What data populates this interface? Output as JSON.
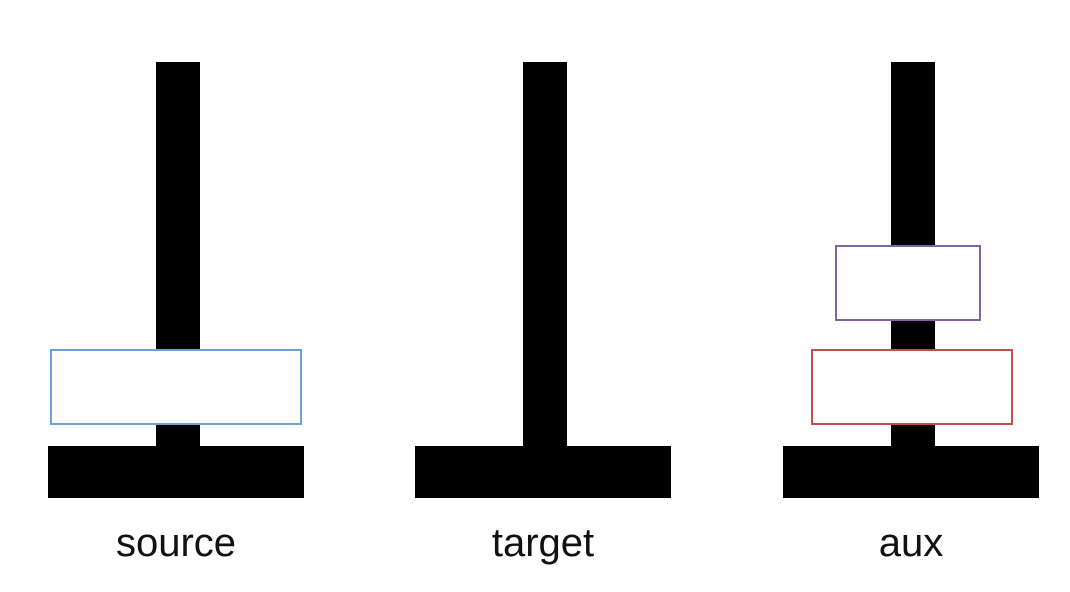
{
  "towers": [
    {
      "id": "source",
      "label": "source",
      "disks": [
        {
          "border_color": "#6f9fd8"
        }
      ]
    },
    {
      "id": "target",
      "label": "target",
      "disks": []
    },
    {
      "id": "aux",
      "label": "aux",
      "disks": [
        {
          "border_color": "#c0504d"
        },
        {
          "border_color": "#8064a2"
        }
      ]
    }
  ],
  "colors": {
    "pole": "#000000",
    "base": "#000000",
    "disk_fill": "#ffffff"
  }
}
